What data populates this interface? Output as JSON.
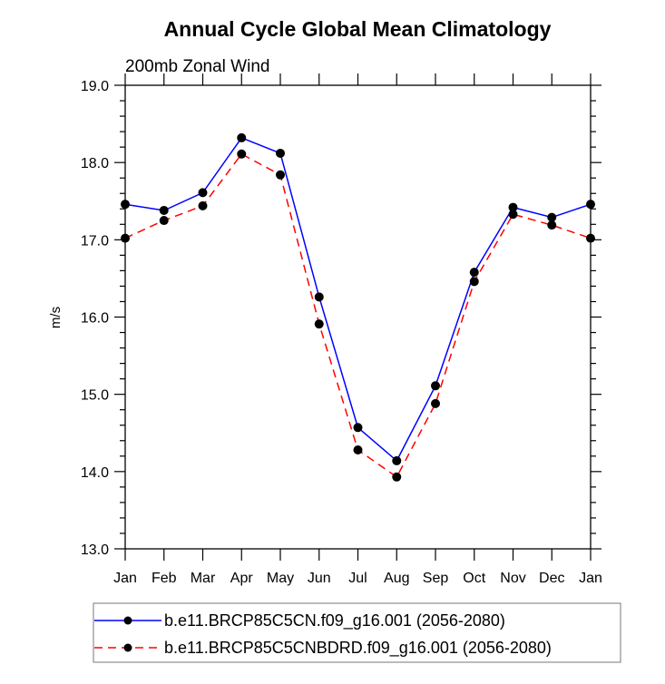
{
  "chart_data": {
    "type": "line",
    "title": "Annual Cycle Global Mean Climatology",
    "subtitle": "200mb Zonal Wind",
    "xlabel": "",
    "ylabel": "m/s",
    "ylim": [
      13.0,
      19.0
    ],
    "yticks_major": [
      "13.0",
      "14.0",
      "15.0",
      "16.0",
      "17.0",
      "18.0",
      "19.0"
    ],
    "yticks_minor_step": 0.2,
    "categories": [
      "Jan",
      "Feb",
      "Mar",
      "Apr",
      "May",
      "Jun",
      "Jul",
      "Aug",
      "Sep",
      "Oct",
      "Nov",
      "Dec",
      "Jan"
    ],
    "grid": false,
    "legend_position": "bottom",
    "series": [
      {
        "name": "b.e11.BRCP85C5CN.f09_g16.001 (2056-2080)",
        "color": "#0000ff",
        "dash": "solid",
        "marker": "filled-circle",
        "values": [
          17.46,
          17.38,
          17.61,
          18.32,
          18.12,
          16.26,
          14.57,
          14.14,
          15.11,
          16.58,
          17.42,
          17.29,
          17.46
        ]
      },
      {
        "name": "b.e11.BRCP85C5CNBDRD.f09_g16.001 (2056-2080)",
        "color": "#ff0000",
        "dash": "dashed",
        "marker": "filled-circle",
        "values": [
          17.02,
          17.25,
          17.44,
          18.11,
          17.84,
          15.91,
          14.28,
          13.93,
          14.88,
          16.46,
          17.33,
          17.19,
          17.02
        ]
      }
    ]
  }
}
